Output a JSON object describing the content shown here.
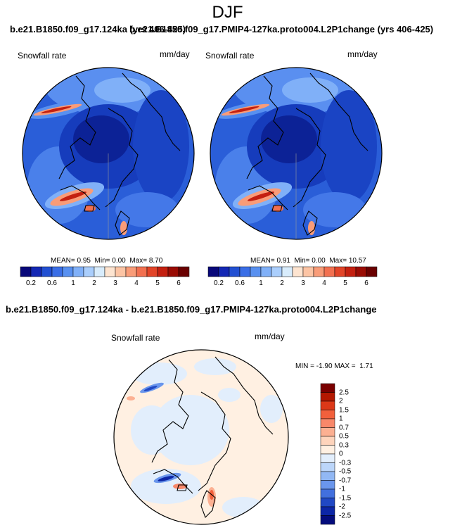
{
  "figure": {
    "season": "DJF"
  },
  "panels": [
    {
      "title": "b.e21.B1850.f09_g17.124ka (yrs 406-425)",
      "title_overlap": "b.e21.B1850.f09_g17.PMIP4-127ka.proto004.L2P1change (yrs 406-425)",
      "variable": "Snowfall rate",
      "units": "mm/day",
      "stats": {
        "mean_label": "MEAN=",
        "mean": "0.95",
        "min_label": "Min=",
        "min": "0.00",
        "max_label": "Max=",
        "max": "8.70"
      }
    },
    {
      "title": "b.e21.B1850.f09_g17.PMIP4-127ka.proto004.L2P1change (yrs 406-425)",
      "variable": "Snowfall rate",
      "units": "mm/day",
      "stats": {
        "mean_label": "MEAN=",
        "mean": "0.91",
        "min_label": "Min=",
        "min": "0.00",
        "max_label": "Max=",
        "max": "10.57"
      }
    },
    {
      "title": "b.e21.B1850.f09_g17.124ka - b.e21.B1850.f09_g17.PMIP4-127ka.proto004.L2P1change",
      "variable": "Snowfall rate",
      "units": "mm/day",
      "stats": {
        "min_label": "MIN =",
        "min": "-1.90",
        "max_label": "MAX =",
        "max": "1.71"
      }
    }
  ],
  "colorbar_abs": {
    "tick_labels": [
      "0.2",
      "0.6",
      "1",
      "2",
      "3",
      "4",
      "5",
      "6"
    ],
    "colors": [
      "#08087a",
      "#1428b4",
      "#2250d2",
      "#3a6ee6",
      "#5890f0",
      "#80b0f8",
      "#aacefc",
      "#d8ecfc",
      "#fde4d0",
      "#fcc4a4",
      "#f99c78",
      "#f27050",
      "#e24428",
      "#c42010",
      "#9a0c04",
      "#6a0000"
    ]
  },
  "colorbar_diff": {
    "tick_labels": [
      "2.5",
      "2",
      "1.5",
      "1",
      "0.7",
      "0.5",
      "0.3",
      "0",
      "-0.3",
      "-0.5",
      "-0.7",
      "-1",
      "-1.5",
      "-2",
      "-2.5"
    ],
    "colors": [
      "#7a0000",
      "#b41800",
      "#dc3818",
      "#f2603c",
      "#f8886a",
      "#fcb092",
      "#fed4bc",
      "#fff0e2",
      "#e2eefc",
      "#bcd6fa",
      "#92b8f4",
      "#6a96ec",
      "#4270de",
      "#2048c4",
      "#0c26a6",
      "#040c7c"
    ]
  }
}
